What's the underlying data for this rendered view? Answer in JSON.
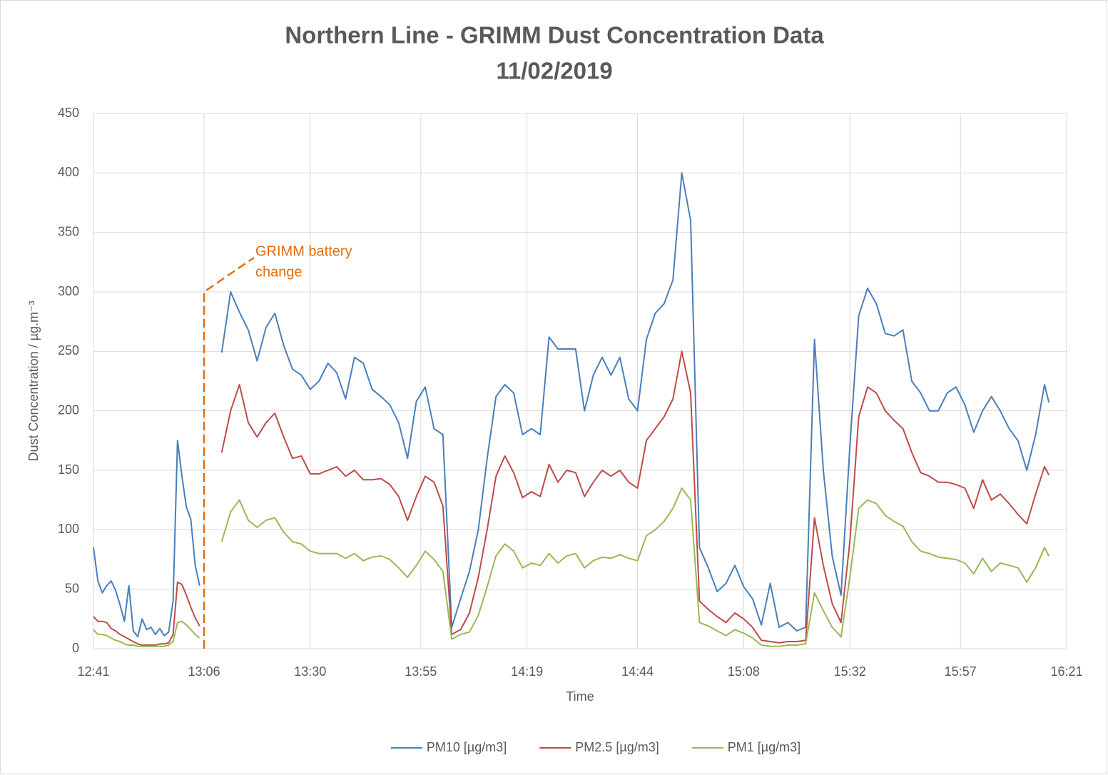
{
  "chart_data": {
    "type": "line",
    "title": "Northern Line  - GRIMM Dust Concentration Data",
    "subtitle": "11/02/2019",
    "x_label": "Time",
    "y_label": "Dust Concentration / µg.m⁻³",
    "x": [
      "12:41",
      "12:42",
      "12:43",
      "12:44",
      "12:45",
      "12:46",
      "12:47",
      "12:48",
      "12:49",
      "12:50",
      "12:51",
      "12:52",
      "12:53",
      "12:54",
      "12:55",
      "12:56",
      "12:57",
      "12:58",
      "12:59",
      "13:00",
      "13:01",
      "13:02",
      "13:03",
      "13:04",
      "13:05",
      "13:07",
      "13:10",
      "13:12",
      "13:14",
      "13:16",
      "13:18",
      "13:20",
      "13:22",
      "13:24",
      "13:26",
      "13:28",
      "13:30",
      "13:32",
      "13:34",
      "13:36",
      "13:38",
      "13:40",
      "13:42",
      "13:44",
      "13:46",
      "13:48",
      "13:50",
      "13:52",
      "13:54",
      "13:56",
      "13:58",
      "14:00",
      "14:02",
      "14:04",
      "14:06",
      "14:08",
      "14:10",
      "14:12",
      "14:14",
      "14:16",
      "14:18",
      "14:20",
      "14:22",
      "14:24",
      "14:26",
      "14:28",
      "14:30",
      "14:32",
      "14:34",
      "14:36",
      "14:38",
      "14:40",
      "14:42",
      "14:44",
      "14:46",
      "14:48",
      "14:50",
      "14:52",
      "14:54",
      "14:56",
      "14:58",
      "15:00",
      "15:02",
      "15:04",
      "15:06",
      "15:08",
      "15:10",
      "15:12",
      "15:14",
      "15:16",
      "15:18",
      "15:20",
      "15:22",
      "15:24",
      "15:26",
      "15:28",
      "15:30",
      "15:32",
      "15:34",
      "15:36",
      "15:38",
      "15:40",
      "15:42",
      "15:44",
      "15:46",
      "15:48",
      "15:50",
      "15:52",
      "15:54",
      "15:56",
      "15:58",
      "16:00",
      "16:02",
      "16:04",
      "16:06",
      "16:08",
      "16:10",
      "16:12",
      "16:14",
      "16:16",
      "16:17"
    ],
    "series": [
      {
        "name": "PM10 [µg/m3]",
        "color": "#4a7ebb",
        "values": [
          85,
          57,
          47,
          53,
          57,
          49,
          37,
          23,
          53,
          15,
          10,
          25,
          16,
          18,
          12,
          17,
          11,
          14,
          40,
          175,
          145,
          119,
          109,
          70,
          53,
          null,
          249,
          300,
          283,
          268,
          242,
          270,
          282,
          255,
          235,
          230,
          218,
          225,
          240,
          232,
          210,
          245,
          240,
          218,
          212,
          205,
          190,
          160,
          208,
          220,
          185,
          180,
          18,
          42,
          65,
          100,
          160,
          212,
          222,
          215,
          180,
          185,
          180,
          262,
          252,
          252,
          252,
          200,
          230,
          245,
          230,
          245,
          210,
          200,
          260,
          282,
          290,
          310,
          400,
          360,
          85,
          68,
          48,
          55,
          70,
          52,
          42,
          20,
          55,
          18,
          22,
          15,
          18,
          260,
          150,
          78,
          45,
          170,
          280,
          303,
          290,
          265,
          263,
          268,
          225,
          215,
          200,
          200,
          215,
          220,
          205,
          182,
          200,
          212,
          200,
          185,
          175,
          150,
          180,
          222,
          207
        ]
      },
      {
        "name": "PM2.5 [µg/m3]",
        "color": "#be4b48",
        "values": [
          27,
          23,
          23,
          22,
          17,
          15,
          12,
          10,
          8,
          6,
          4,
          3,
          3,
          3,
          3,
          4,
          4,
          5,
          12,
          56,
          54,
          45,
          35,
          26,
          19,
          null,
          165,
          200,
          222,
          190,
          178,
          190,
          198,
          178,
          160,
          162,
          147,
          147,
          150,
          153,
          145,
          150,
          142,
          142,
          143,
          138,
          128,
          108,
          128,
          145,
          140,
          120,
          12,
          16,
          30,
          60,
          100,
          145,
          162,
          148,
          127,
          132,
          128,
          155,
          140,
          150,
          148,
          128,
          140,
          150,
          145,
          150,
          140,
          135,
          175,
          185,
          195,
          210,
          250,
          215,
          40,
          33,
          27,
          22,
          30,
          25,
          18,
          7,
          6,
          5,
          6,
          6,
          7,
          110,
          70,
          38,
          22,
          90,
          195,
          220,
          215,
          200,
          192,
          185,
          165,
          148,
          145,
          140,
          140,
          138,
          135,
          118,
          142,
          125,
          130,
          122,
          113,
          105,
          130,
          153,
          146
        ]
      },
      {
        "name": "PM1 [µg/m3]",
        "color": "#98b954",
        "values": [
          16,
          12,
          12,
          11,
          9,
          7,
          6,
          4,
          3,
          3,
          2,
          2,
          2,
          2,
          2,
          2,
          2,
          3,
          6,
          22,
          23,
          20,
          16,
          12,
          9,
          null,
          90,
          115,
          125,
          108,
          102,
          108,
          110,
          98,
          90,
          88,
          82,
          80,
          80,
          80,
          76,
          80,
          74,
          77,
          78,
          75,
          68,
          60,
          70,
          82,
          75,
          65,
          8,
          12,
          14,
          28,
          52,
          78,
          88,
          82,
          68,
          72,
          70,
          80,
          72,
          78,
          80,
          68,
          74,
          77,
          76,
          79,
          76,
          74,
          95,
          100,
          107,
          118,
          135,
          125,
          22,
          19,
          15,
          11,
          16,
          13,
          9,
          3,
          2,
          2,
          3,
          3,
          4,
          47,
          32,
          18,
          10,
          60,
          118,
          125,
          122,
          112,
          107,
          103,
          90,
          82,
          80,
          77,
          76,
          75,
          72,
          63,
          76,
          65,
          72,
          70,
          68,
          56,
          68,
          85,
          78
        ]
      }
    ],
    "xlim": [
      "12:41",
      "16:21"
    ],
    "xticks": [
      "12:41",
      "13:06",
      "13:30",
      "13:55",
      "14:19",
      "14:44",
      "15:08",
      "15:32",
      "15:57",
      "16:21"
    ],
    "ylim": [
      0,
      450
    ],
    "yticks": [
      0,
      50,
      100,
      150,
      200,
      250,
      300,
      350,
      400,
      450
    ],
    "grid": true,
    "legend": "bottom",
    "annotations": [
      {
        "lines": [
          "GRIMM battery",
          "change"
        ],
        "x": "13:06",
        "y": 300,
        "color": "#e46c0a"
      }
    ]
  }
}
